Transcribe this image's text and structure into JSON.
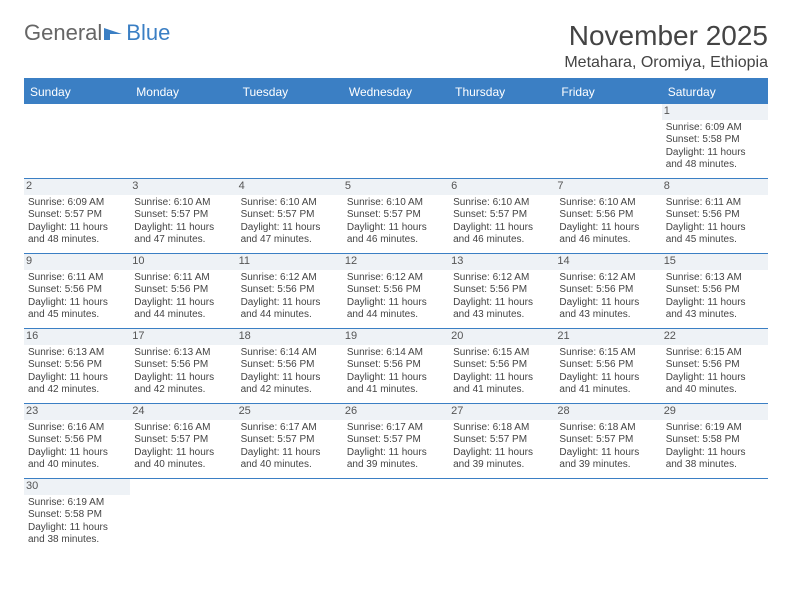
{
  "logo": {
    "text1": "General",
    "text2": "Blue"
  },
  "title": "November 2025",
  "location": "Metahara, Oromiya, Ethiopia",
  "colors": {
    "header_bg": "#3b7fc4",
    "border": "#3b7fc4",
    "text": "#444444",
    "daynum_bg": "#eef2f6"
  },
  "dayHeaders": [
    "Sunday",
    "Monday",
    "Tuesday",
    "Wednesday",
    "Thursday",
    "Friday",
    "Saturday"
  ],
  "weeks": [
    [
      null,
      null,
      null,
      null,
      null,
      null,
      {
        "n": "1",
        "sr": "Sunrise: 6:09 AM",
        "ss": "Sunset: 5:58 PM",
        "dl1": "Daylight: 11 hours",
        "dl2": "and 48 minutes."
      }
    ],
    [
      {
        "n": "2",
        "sr": "Sunrise: 6:09 AM",
        "ss": "Sunset: 5:57 PM",
        "dl1": "Daylight: 11 hours",
        "dl2": "and 48 minutes."
      },
      {
        "n": "3",
        "sr": "Sunrise: 6:10 AM",
        "ss": "Sunset: 5:57 PM",
        "dl1": "Daylight: 11 hours",
        "dl2": "and 47 minutes."
      },
      {
        "n": "4",
        "sr": "Sunrise: 6:10 AM",
        "ss": "Sunset: 5:57 PM",
        "dl1": "Daylight: 11 hours",
        "dl2": "and 47 minutes."
      },
      {
        "n": "5",
        "sr": "Sunrise: 6:10 AM",
        "ss": "Sunset: 5:57 PM",
        "dl1": "Daylight: 11 hours",
        "dl2": "and 46 minutes."
      },
      {
        "n": "6",
        "sr": "Sunrise: 6:10 AM",
        "ss": "Sunset: 5:57 PM",
        "dl1": "Daylight: 11 hours",
        "dl2": "and 46 minutes."
      },
      {
        "n": "7",
        "sr": "Sunrise: 6:10 AM",
        "ss": "Sunset: 5:56 PM",
        "dl1": "Daylight: 11 hours",
        "dl2": "and 46 minutes."
      },
      {
        "n": "8",
        "sr": "Sunrise: 6:11 AM",
        "ss": "Sunset: 5:56 PM",
        "dl1": "Daylight: 11 hours",
        "dl2": "and 45 minutes."
      }
    ],
    [
      {
        "n": "9",
        "sr": "Sunrise: 6:11 AM",
        "ss": "Sunset: 5:56 PM",
        "dl1": "Daylight: 11 hours",
        "dl2": "and 45 minutes."
      },
      {
        "n": "10",
        "sr": "Sunrise: 6:11 AM",
        "ss": "Sunset: 5:56 PM",
        "dl1": "Daylight: 11 hours",
        "dl2": "and 44 minutes."
      },
      {
        "n": "11",
        "sr": "Sunrise: 6:12 AM",
        "ss": "Sunset: 5:56 PM",
        "dl1": "Daylight: 11 hours",
        "dl2": "and 44 minutes."
      },
      {
        "n": "12",
        "sr": "Sunrise: 6:12 AM",
        "ss": "Sunset: 5:56 PM",
        "dl1": "Daylight: 11 hours",
        "dl2": "and 44 minutes."
      },
      {
        "n": "13",
        "sr": "Sunrise: 6:12 AM",
        "ss": "Sunset: 5:56 PM",
        "dl1": "Daylight: 11 hours",
        "dl2": "and 43 minutes."
      },
      {
        "n": "14",
        "sr": "Sunrise: 6:12 AM",
        "ss": "Sunset: 5:56 PM",
        "dl1": "Daylight: 11 hours",
        "dl2": "and 43 minutes."
      },
      {
        "n": "15",
        "sr": "Sunrise: 6:13 AM",
        "ss": "Sunset: 5:56 PM",
        "dl1": "Daylight: 11 hours",
        "dl2": "and 43 minutes."
      }
    ],
    [
      {
        "n": "16",
        "sr": "Sunrise: 6:13 AM",
        "ss": "Sunset: 5:56 PM",
        "dl1": "Daylight: 11 hours",
        "dl2": "and 42 minutes."
      },
      {
        "n": "17",
        "sr": "Sunrise: 6:13 AM",
        "ss": "Sunset: 5:56 PM",
        "dl1": "Daylight: 11 hours",
        "dl2": "and 42 minutes."
      },
      {
        "n": "18",
        "sr": "Sunrise: 6:14 AM",
        "ss": "Sunset: 5:56 PM",
        "dl1": "Daylight: 11 hours",
        "dl2": "and 42 minutes."
      },
      {
        "n": "19",
        "sr": "Sunrise: 6:14 AM",
        "ss": "Sunset: 5:56 PM",
        "dl1": "Daylight: 11 hours",
        "dl2": "and 41 minutes."
      },
      {
        "n": "20",
        "sr": "Sunrise: 6:15 AM",
        "ss": "Sunset: 5:56 PM",
        "dl1": "Daylight: 11 hours",
        "dl2": "and 41 minutes."
      },
      {
        "n": "21",
        "sr": "Sunrise: 6:15 AM",
        "ss": "Sunset: 5:56 PM",
        "dl1": "Daylight: 11 hours",
        "dl2": "and 41 minutes."
      },
      {
        "n": "22",
        "sr": "Sunrise: 6:15 AM",
        "ss": "Sunset: 5:56 PM",
        "dl1": "Daylight: 11 hours",
        "dl2": "and 40 minutes."
      }
    ],
    [
      {
        "n": "23",
        "sr": "Sunrise: 6:16 AM",
        "ss": "Sunset: 5:56 PM",
        "dl1": "Daylight: 11 hours",
        "dl2": "and 40 minutes."
      },
      {
        "n": "24",
        "sr": "Sunrise: 6:16 AM",
        "ss": "Sunset: 5:57 PM",
        "dl1": "Daylight: 11 hours",
        "dl2": "and 40 minutes."
      },
      {
        "n": "25",
        "sr": "Sunrise: 6:17 AM",
        "ss": "Sunset: 5:57 PM",
        "dl1": "Daylight: 11 hours",
        "dl2": "and 40 minutes."
      },
      {
        "n": "26",
        "sr": "Sunrise: 6:17 AM",
        "ss": "Sunset: 5:57 PM",
        "dl1": "Daylight: 11 hours",
        "dl2": "and 39 minutes."
      },
      {
        "n": "27",
        "sr": "Sunrise: 6:18 AM",
        "ss": "Sunset: 5:57 PM",
        "dl1": "Daylight: 11 hours",
        "dl2": "and 39 minutes."
      },
      {
        "n": "28",
        "sr": "Sunrise: 6:18 AM",
        "ss": "Sunset: 5:57 PM",
        "dl1": "Daylight: 11 hours",
        "dl2": "and 39 minutes."
      },
      {
        "n": "29",
        "sr": "Sunrise: 6:19 AM",
        "ss": "Sunset: 5:58 PM",
        "dl1": "Daylight: 11 hours",
        "dl2": "and 38 minutes."
      }
    ],
    [
      {
        "n": "30",
        "sr": "Sunrise: 6:19 AM",
        "ss": "Sunset: 5:58 PM",
        "dl1": "Daylight: 11 hours",
        "dl2": "and 38 minutes."
      },
      null,
      null,
      null,
      null,
      null,
      null
    ]
  ]
}
